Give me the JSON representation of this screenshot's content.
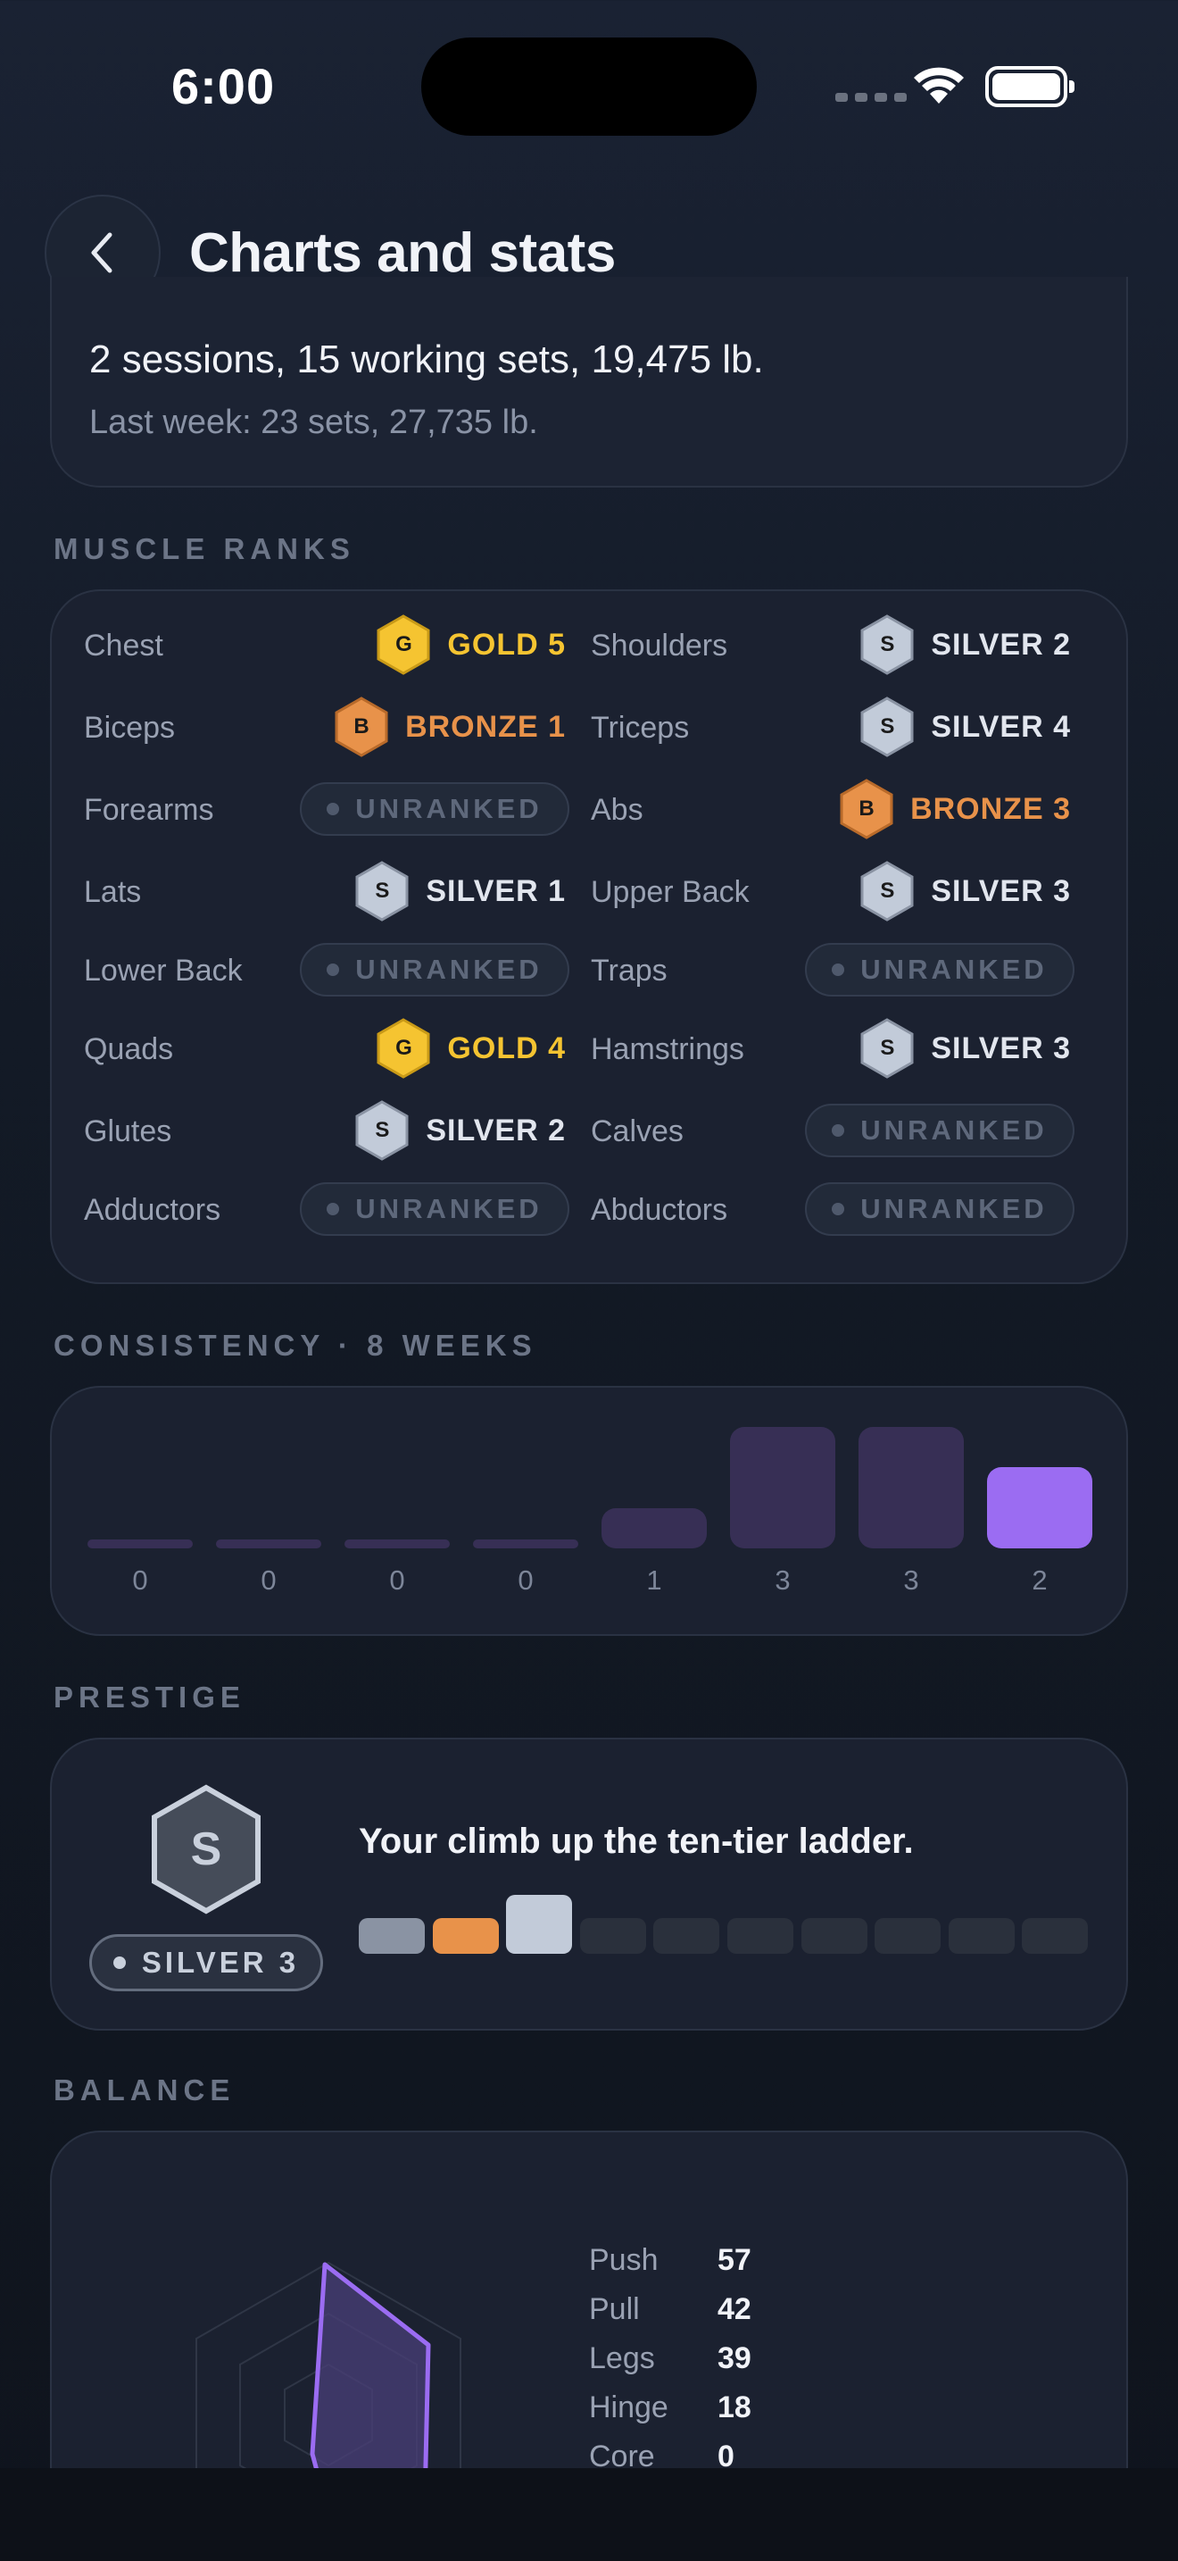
{
  "status_bar": {
    "time": "6:00"
  },
  "header": {
    "title": "Charts and stats"
  },
  "summary": {
    "main": "2 sessions, 15 working sets, 19,475 lb.",
    "sub": "Last week: 23 sets, 27,735 lb."
  },
  "muscle_ranks": {
    "label": "MUSCLE RANKS",
    "rows": [
      {
        "left": {
          "name": "Chest",
          "tier": "gold",
          "letter": "G",
          "rank": "GOLD 5"
        },
        "right": {
          "name": "Shoulders",
          "tier": "silver",
          "letter": "S",
          "rank": "SILVER 2"
        }
      },
      {
        "left": {
          "name": "Biceps",
          "tier": "bronze",
          "letter": "B",
          "rank": "BRONZE 1"
        },
        "right": {
          "name": "Triceps",
          "tier": "silver",
          "letter": "S",
          "rank": "SILVER 4"
        }
      },
      {
        "left": {
          "name": "Forearms",
          "tier": "unranked",
          "letter": "",
          "rank": "UNRANKED"
        },
        "right": {
          "name": "Abs",
          "tier": "bronze",
          "letter": "B",
          "rank": "BRONZE 3"
        }
      },
      {
        "left": {
          "name": "Lats",
          "tier": "silver",
          "letter": "S",
          "rank": "SILVER 1"
        },
        "right": {
          "name": "Upper Back",
          "tier": "silver",
          "letter": "S",
          "rank": "SILVER 3"
        }
      },
      {
        "left": {
          "name": "Lower Back",
          "tier": "unranked",
          "letter": "",
          "rank": "UNRANKED"
        },
        "right": {
          "name": "Traps",
          "tier": "unranked",
          "letter": "",
          "rank": "UNRANKED"
        }
      },
      {
        "left": {
          "name": "Quads",
          "tier": "gold",
          "letter": "G",
          "rank": "GOLD 4"
        },
        "right": {
          "name": "Hamstrings",
          "tier": "silver",
          "letter": "S",
          "rank": "SILVER 3"
        }
      },
      {
        "left": {
          "name": "Glutes",
          "tier": "silver",
          "letter": "S",
          "rank": "SILVER 2"
        },
        "right": {
          "name": "Calves",
          "tier": "unranked",
          "letter": "",
          "rank": "UNRANKED"
        }
      },
      {
        "left": {
          "name": "Adductors",
          "tier": "unranked",
          "letter": "",
          "rank": "UNRANKED"
        },
        "right": {
          "name": "Abductors",
          "tier": "unranked",
          "letter": "",
          "rank": "UNRANKED"
        }
      }
    ]
  },
  "consistency": {
    "label": "CONSISTENCY · 8 WEEKS"
  },
  "chart_data": {
    "type": "bar",
    "categories": [
      "",
      "",
      "",
      "",
      "",
      "",
      "",
      ""
    ],
    "values": [
      0,
      0,
      0,
      0,
      1,
      3,
      3,
      2
    ],
    "value_labels": [
      "0",
      "0",
      "0",
      "0",
      "1",
      "3",
      "3",
      "2"
    ],
    "ylim": [
      0,
      3
    ],
    "grid": false,
    "highlight_index": 7,
    "colors": {
      "bar": "#372f55",
      "highlight": "#9b6cf2"
    }
  },
  "prestige": {
    "label": "PRESTIGE",
    "letter": "S",
    "rank": "SILVER 3",
    "description": "Your climb up the ten-tier ladder.",
    "ladder_total": 10,
    "ladder_current": 3,
    "ladder_colors": [
      "#8a93a3",
      "#e8924a",
      "#c2cbd9"
    ]
  },
  "balance": {
    "label": "BALANCE",
    "items": [
      {
        "name": "Push",
        "value": "57"
      },
      {
        "name": "Pull",
        "value": "42"
      },
      {
        "name": "Legs",
        "value": "39"
      },
      {
        "name": "Hinge",
        "value": "18"
      },
      {
        "name": "Core",
        "value": "0"
      }
    ]
  },
  "colors": {
    "gold": "#f5c431",
    "bronze": "#e8924a",
    "silver": "#c2cbd9",
    "accent": "#9b6cf2"
  }
}
